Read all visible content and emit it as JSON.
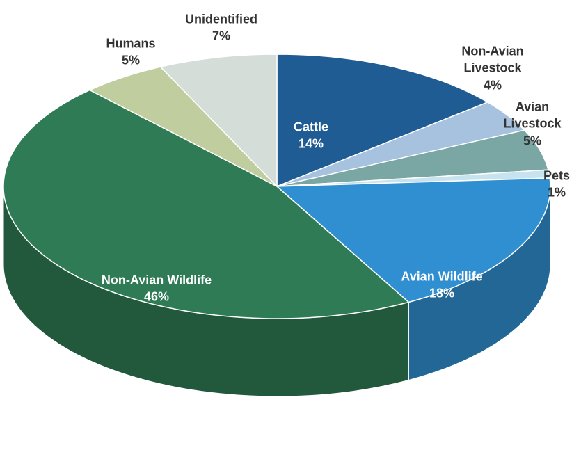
{
  "chart_data": {
    "type": "pie",
    "categories": [
      "Cattle",
      "Non-Avian Livestock",
      "Avian Livestock",
      "Pets",
      "Avian Wildlife",
      "Non-Avian Wildlife",
      "Humans",
      "Unidentified"
    ],
    "values": [
      14,
      4,
      5,
      1,
      18,
      46,
      5,
      7
    ],
    "value_labels": [
      "14%",
      "4%",
      "5%",
      "1%",
      "18%",
      "46%",
      "5%",
      "7%"
    ],
    "colors": [
      "#1f5c94",
      "#a7c2de",
      "#7aa6a4",
      "#c6e3ef",
      "#2f8fd0",
      "#2f7b55",
      "#c0cd9f",
      "#d4ddd8"
    ]
  }
}
